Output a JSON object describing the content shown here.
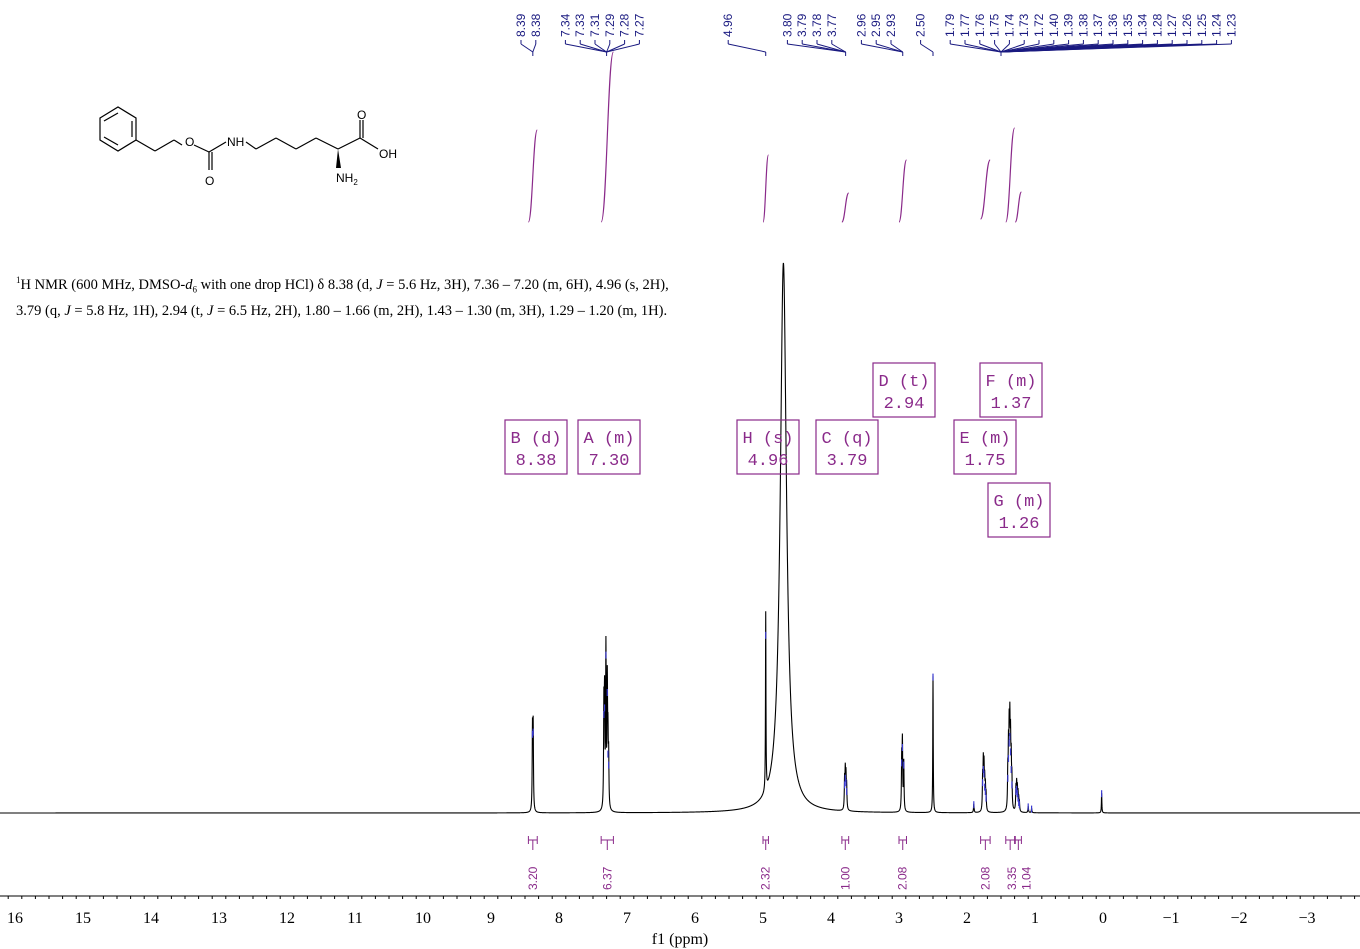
{
  "description": {
    "nucleus_sup": "1",
    "text_a": "H NMR (600 MHz, DMSO-",
    "solvent_d": "d",
    "solvent_sub": "6",
    "text_b": " with one drop HCl) δ 8.38 (d, ",
    "j1": "J",
    "text_c": " = 5.6 Hz, 3H), 7.36 – 7.20 (m, 6H), 4.96 (s, 2H), 3.79 (q, ",
    "j2": "J",
    "text_d": " = 5.8 Hz, 1H), 2.94 (t, ",
    "j3": "J",
    "text_e": " = 6.5 Hz, 2H), 1.80 – 1.66 (m, 2H), 1.43 – 1.30 (m, 3H), 1.29 – 1.20 (m, 1H)."
  },
  "structure_labels": {
    "nh": "NH",
    "o_ether": "O",
    "o_carbonyl": "O",
    "o_acid": "O",
    "oh": "OH",
    "nh2": "NH",
    "nh2_sub": "2"
  },
  "colors": {
    "spectrum": "#000000",
    "peak_label": "#1a1a80",
    "annotation": "#8a2a8a",
    "peak_marker": "#3a3ad0"
  },
  "chart_data": {
    "type": "line",
    "xlabel": "f1 (ppm)",
    "xlim": [
      16.3,
      -3.8
    ],
    "x_reversed": true,
    "x_ticks": [
      "16",
      "15",
      "14",
      "13",
      "12",
      "11",
      "10",
      "9",
      "8",
      "7",
      "6",
      "5",
      "4",
      "3",
      "2",
      "1",
      "0",
      "−1",
      "−2",
      "−3"
    ],
    "x_tick_values": [
      16,
      15,
      14,
      13,
      12,
      11,
      10,
      9,
      8,
      7,
      6,
      5,
      4,
      3,
      2,
      1,
      0,
      -1,
      -2,
      -3
    ],
    "peaks": [
      {
        "ppm": 8.38,
        "height": 0.37
      },
      {
        "ppm": 8.39,
        "height": 0.36
      },
      {
        "ppm": 7.34,
        "height": 0.45
      },
      {
        "ppm": 7.33,
        "height": 0.48
      },
      {
        "ppm": 7.31,
        "height": 0.72
      },
      {
        "ppm": 7.29,
        "height": 0.55
      },
      {
        "ppm": 7.28,
        "height": 0.27
      },
      {
        "ppm": 7.27,
        "height": 0.22
      },
      {
        "ppm": 4.96,
        "height": 0.81
      },
      {
        "ppm": 4.7,
        "height": 2.5
      },
      {
        "ppm": 3.8,
        "height": 0.13
      },
      {
        "ppm": 3.79,
        "height": 0.16
      },
      {
        "ppm": 3.78,
        "height": 0.14
      },
      {
        "ppm": 3.77,
        "height": 0.1
      },
      {
        "ppm": 2.96,
        "height": 0.23
      },
      {
        "ppm": 2.95,
        "height": 0.3
      },
      {
        "ppm": 2.93,
        "height": 0.22
      },
      {
        "ppm": 2.5,
        "height": 0.62
      },
      {
        "ppm": 1.9,
        "height": 0.04
      },
      {
        "ppm": 1.77,
        "height": 0.14
      },
      {
        "ppm": 1.76,
        "height": 0.2
      },
      {
        "ppm": 1.75,
        "height": 0.18
      },
      {
        "ppm": 1.74,
        "height": 0.12
      },
      {
        "ppm": 1.73,
        "height": 0.1
      },
      {
        "ppm": 1.72,
        "height": 0.07
      },
      {
        "ppm": 1.4,
        "height": 0.16
      },
      {
        "ppm": 1.39,
        "height": 0.25
      },
      {
        "ppm": 1.38,
        "height": 0.32
      },
      {
        "ppm": 1.37,
        "height": 0.35
      },
      {
        "ppm": 1.36,
        "height": 0.28
      },
      {
        "ppm": 1.35,
        "height": 0.2
      },
      {
        "ppm": 1.34,
        "height": 0.13
      },
      {
        "ppm": 1.28,
        "height": 0.1
      },
      {
        "ppm": 1.27,
        "height": 0.11
      },
      {
        "ppm": 1.26,
        "height": 0.09
      },
      {
        "ppm": 1.25,
        "height": 0.07
      },
      {
        "ppm": 1.24,
        "height": 0.05
      },
      {
        "ppm": 1.23,
        "height": 0.04
      },
      {
        "ppm": 1.1,
        "height": 0.03
      },
      {
        "ppm": 1.05,
        "height": 0.02
      },
      {
        "ppm": 0.02,
        "height": 0.09
      }
    ],
    "peak_labels": [
      {
        "group": [
          "8.39",
          "8.38"
        ],
        "center": 8.385
      },
      {
        "group": [
          "7.34",
          "7.33",
          "7.31",
          "7.29",
          "7.28",
          "7.27"
        ],
        "center": 7.3
      },
      {
        "group": [
          "4.96"
        ],
        "center": 4.96
      },
      {
        "group": [
          "3.80",
          "3.79",
          "3.78",
          "3.77"
        ],
        "center": 3.785
      },
      {
        "group": [
          "2.96",
          "2.95",
          "2.93"
        ],
        "center": 2.945
      },
      {
        "group": [
          "2.50"
        ],
        "center": 2.5
      },
      {
        "group": [
          "1.79",
          "1.77",
          "1.76",
          "1.75",
          "1.74",
          "1.73",
          "1.72",
          "1.40",
          "1.39",
          "1.38",
          "1.37",
          "1.36",
          "1.35",
          "1.34",
          "1.28",
          "1.27",
          "1.26",
          "1.25",
          "1.24",
          "1.23"
        ],
        "center": 1.5
      }
    ],
    "multiplets": [
      {
        "label": "B (d)",
        "shift": "8.38",
        "ppm": 8.38
      },
      {
        "label": "A (m)",
        "shift": "7.30",
        "ppm": 7.3
      },
      {
        "label": "H (s)",
        "shift": "4.96",
        "ppm": 4.96
      },
      {
        "label": "C (q)",
        "shift": "3.79",
        "ppm": 3.79
      },
      {
        "label": "D (t)",
        "shift": "2.94",
        "ppm": 2.94
      },
      {
        "label": "E (m)",
        "shift": "1.75",
        "ppm": 1.75
      },
      {
        "label": "F (m)",
        "shift": "1.37",
        "ppm": 1.37
      },
      {
        "label": "G (m)",
        "shift": "1.26",
        "ppm": 1.26
      }
    ],
    "integrals": [
      {
        "value": "3.20",
        "from": 8.45,
        "to": 8.32
      },
      {
        "value": "6.37",
        "from": 7.38,
        "to": 7.2
      },
      {
        "value": "2.32",
        "from": 5.0,
        "to": 4.92
      },
      {
        "value": "1.00",
        "from": 3.84,
        "to": 3.74
      },
      {
        "value": "2.08",
        "from": 3.0,
        "to": 2.89
      },
      {
        "value": "2.08",
        "from": 1.8,
        "to": 1.66
      },
      {
        "value": "3.35",
        "from": 1.43,
        "to": 1.3
      },
      {
        "value": "1.04",
        "from": 1.29,
        "to": 1.2
      }
    ]
  }
}
